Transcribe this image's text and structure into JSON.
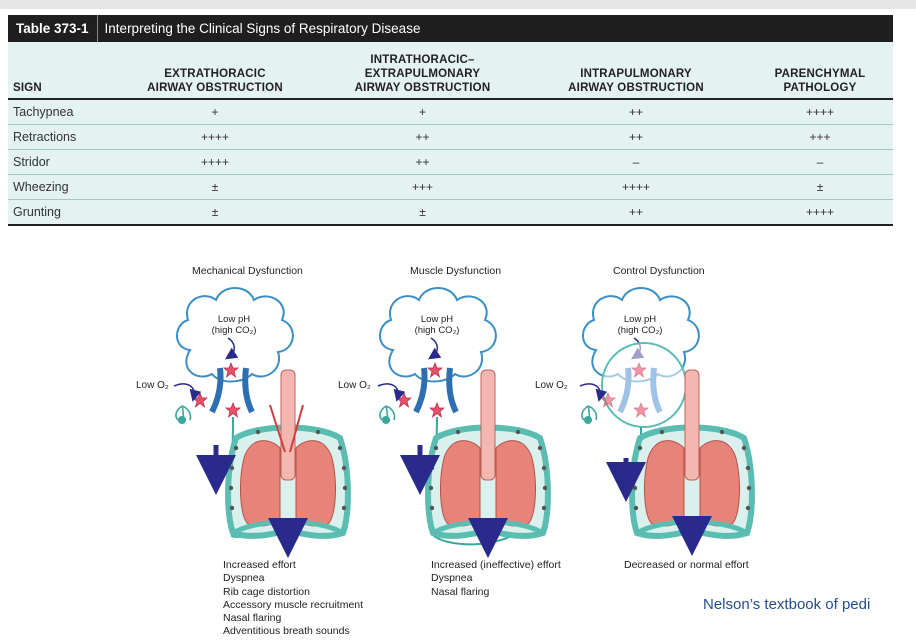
{
  "table": {
    "number": "Table 373-1",
    "title": "Interpreting the Clinical Signs of Respiratory Disease",
    "columns": [
      [
        "SIGN"
      ],
      [
        "EXTRATHORACIC",
        "AIRWAY OBSTRUCTION"
      ],
      [
        "INTRATHORACIC–",
        "EXTRAPULMONARY",
        "AIRWAY OBSTRUCTION"
      ],
      [
        "INTRAPULMONARY",
        "AIRWAY OBSTRUCTION"
      ],
      [
        "PARENCHYMAL",
        "PATHOLOGY"
      ]
    ],
    "rows": [
      [
        "Tachypnea",
        "+",
        "+",
        "++",
        "++++"
      ],
      [
        "Retractions",
        "++++",
        "++",
        "++",
        "+++"
      ],
      [
        "Stridor",
        "++++",
        "++",
        "–",
        "–"
      ],
      [
        "Wheezing",
        "±",
        "+++",
        "++++",
        "±"
      ],
      [
        "Grunting",
        "±",
        "±",
        "++",
        "++++"
      ]
    ]
  },
  "figure": {
    "panels": [
      {
        "title": "Mechanical Dysfunction",
        "cloud_label": [
          "Low pH",
          "(high CO₂)"
        ],
        "o2_label": "Low O₂",
        "caption": [
          "Increased effort",
          "Dyspnea",
          "Rib cage distortion",
          "Accessory muscle recruitment",
          "Nasal flaring",
          "Adventitious breath sounds"
        ]
      },
      {
        "title": "Muscle Dysfunction",
        "cloud_label": [
          "Low pH",
          "(high CO₂)"
        ],
        "o2_label": "Low O₂",
        "caption": [
          "Increased (ineffective) effort",
          "Dyspnea",
          "Nasal flaring"
        ]
      },
      {
        "title": "Control Dysfunction",
        "cloud_label": [
          "Low pH",
          "(high CO₂)"
        ],
        "o2_label": "Low O₂",
        "caption": [
          "Decreased or normal effort"
        ]
      }
    ]
  },
  "source": "Nelson’s textbook of pedi",
  "colors": {
    "header_bg": "#1f1f1f",
    "table_bg": "#e4f2f1",
    "cloud": "#3a8fc4",
    "airway": "#2d6fb0",
    "lung": "#e8837a",
    "chest": "#5bbdb2",
    "arrow": "#2a2a8c",
    "source": "#1f4e8c"
  }
}
